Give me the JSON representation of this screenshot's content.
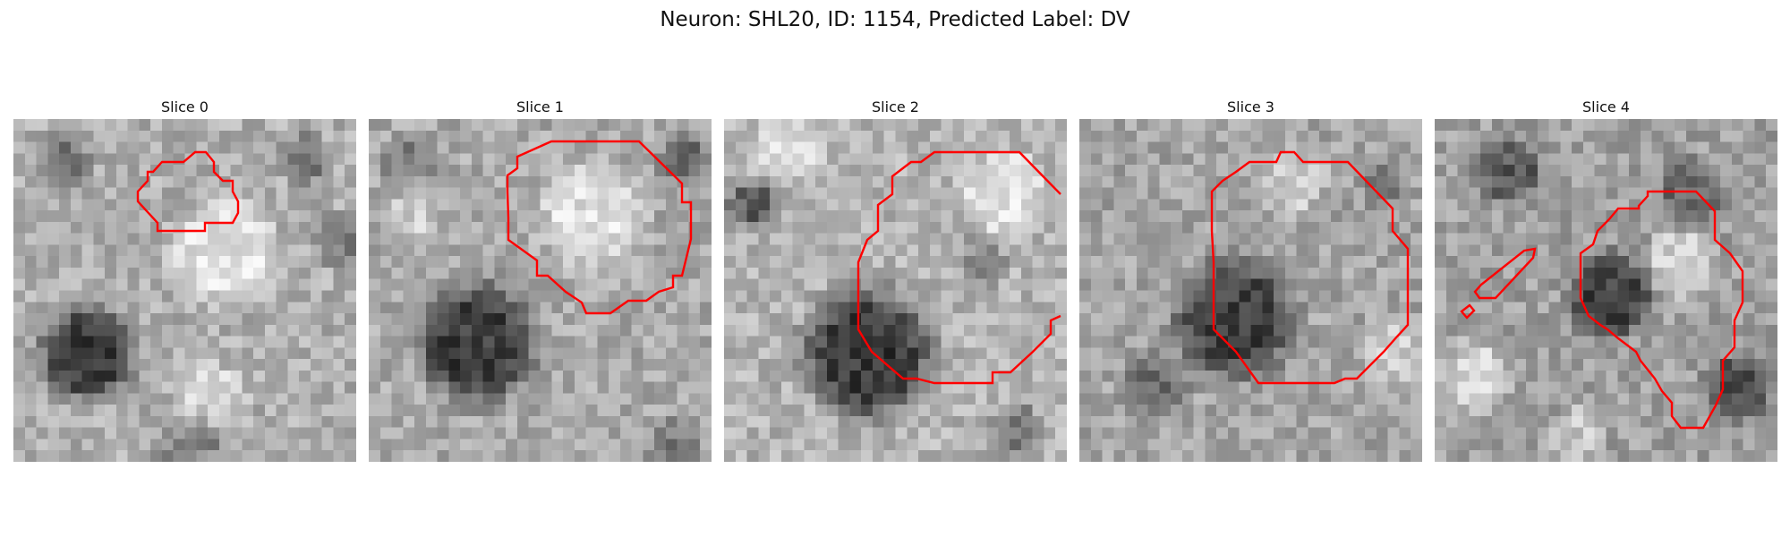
{
  "figure": {
    "title": "Neuron: SHL20, ID: 1154, Predicted Label: DV"
  },
  "contour_color": "#ff0000",
  "slices": [
    {
      "title": "Slice 0",
      "image_description": "grayscale 30x30 microscopy slice with dark blob lower-left and bright cell body upper-right"
    },
    {
      "title": "Slice 1",
      "image_description": "grayscale 30x30 microscopy slice with dark blob lower-left and contour circle upper-right"
    },
    {
      "title": "Slice 2",
      "image_description": "grayscale 30x30 microscopy slice with large dark blob lower-center"
    },
    {
      "title": "Slice 3",
      "image_description": "grayscale 30x30 microscopy slice with dark textured region center"
    },
    {
      "title": "Slice 4",
      "image_description": "grayscale 30x30 microscopy slice with dark regions and irregular contour"
    }
  ]
}
